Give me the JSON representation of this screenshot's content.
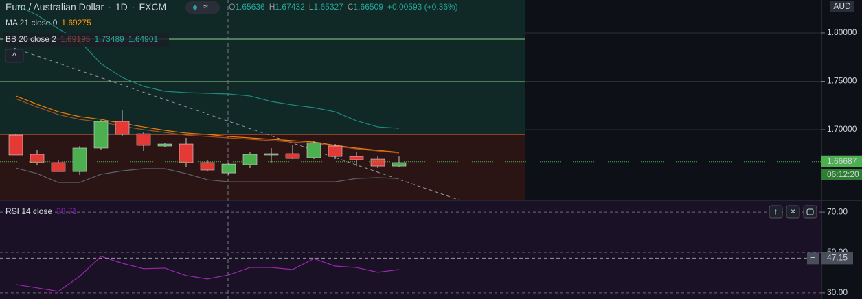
{
  "chart_data": [
    {
      "type": "candlestick",
      "title": "Euro / Australian Dollar",
      "interval": "1D",
      "exchange": "FXCM",
      "ohlc_legend": [
        {
          "key": "O",
          "value": "1.65636"
        },
        {
          "key": "H",
          "value": "1.67432"
        },
        {
          "key": "L",
          "value": "1.65327"
        },
        {
          "key": "C",
          "value": "1.66509"
        }
      ],
      "change": "+0.00593 (+0.36%)",
      "currency": "AUD",
      "open": [
        1.6943,
        1.6745,
        1.666,
        1.6567,
        1.6809,
        1.7085,
        1.6957,
        1.683,
        1.6851,
        1.666,
        1.6553,
        1.6638,
        1.6738,
        1.6752,
        1.6709,
        1.683,
        1.6723,
        1.6695,
        1.6624
      ],
      "high": [
        1.695,
        1.6794,
        1.6681,
        1.683,
        1.7099,
        1.7199,
        1.6979,
        1.6865,
        1.6915,
        1.6681,
        1.666,
        1.6766,
        1.6809,
        1.6837,
        1.6887,
        1.6851,
        1.6766,
        1.6723,
        1.6723
      ],
      "low": [
        1.6738,
        1.6631,
        1.6567,
        1.6532,
        1.6794,
        1.6936,
        1.678,
        1.6816,
        1.6617,
        1.6567,
        1.6532,
        1.6603,
        1.666,
        1.6695,
        1.6695,
        1.6695,
        1.6624,
        1.6603,
        1.6617
      ],
      "close": [
        1.6738,
        1.666,
        1.6567,
        1.6809,
        1.7085,
        1.695,
        1.6837,
        1.6851,
        1.666,
        1.6582,
        1.6645,
        1.6745,
        1.6752,
        1.6702,
        1.6865,
        1.6723,
        1.6688,
        1.6624,
        1.666
      ],
      "up_color": "#4caf50",
      "down_color": "#e53935",
      "indicators": [
        {
          "name": "MA 21 close 0",
          "value_labels": [
            "1.69275"
          ],
          "label_colors": [
            "#ff9800"
          ],
          "lines": [
            {
              "color": "#f57c00",
              "values": [
                1.7348,
                1.7262,
                1.7184,
                1.7135,
                1.7106,
                1.7064,
                1.7028,
                1.6993,
                1.6965,
                1.695,
                1.6929,
                1.6915,
                1.6901,
                1.6887,
                1.6872,
                1.6837,
                1.6809,
                1.6787,
                1.6766
              ]
            }
          ]
        },
        {
          "name": "BB 20 close 2",
          "value_labels": [
            "1.69195",
            "1.73489",
            "1.64901"
          ],
          "label_colors": [
            "#8c3a3a",
            "#26a69a",
            "#26a69a"
          ],
          "lines": [
            {
              "color": "#a0522d",
              "values": [
                1.7319,
                1.7234,
                1.7156,
                1.7106,
                1.7078,
                1.7035,
                1.7,
                1.6972,
                1.6943,
                1.6929,
                1.6915,
                1.6901,
                1.6887,
                1.6872,
                1.6858,
                1.683,
                1.6801,
                1.678,
                1.6759
              ]
            },
            {
              "color": "#1f8a80",
              "values": [
                1.829,
                1.8184,
                1.8042,
                1.7915,
                1.7681,
                1.7539,
                1.7447,
                1.7397,
                1.7383,
                1.7376,
                1.7369,
                1.7348,
                1.7291,
                1.7255,
                1.7227,
                1.7184,
                1.7092,
                1.7028,
                1.7014
              ]
            },
            {
              "color": "#5d6270",
              "values": [
                1.6603,
                1.6546,
                1.6454,
                1.6454,
                1.6539,
                1.6574,
                1.6596,
                1.6596,
                1.6546,
                1.6482,
                1.6461,
                1.6461,
                1.6461,
                1.6461,
                1.6461,
                1.6461,
                1.6496,
                1.6504,
                1.6496
              ]
            }
          ]
        }
      ],
      "last_price": 1.66687,
      "countdown": "06:12:20",
      "ylim": [
        1.627,
        1.834
      ],
      "yticks": [
        {
          "value": 1.8,
          "label": "1.80000"
        },
        {
          "value": 1.75,
          "label": "1.75000"
        },
        {
          "value": 1.7,
          "label": "1.70000"
        }
      ]
    },
    {
      "type": "line",
      "name": "RSI 14 close",
      "value_label": "38.71",
      "color": "#9c27b0",
      "values": [
        34.1,
        32.4,
        30.7,
        38.1,
        48.0,
        44.6,
        41.9,
        42.2,
        38.5,
        36.8,
        38.8,
        42.5,
        42.5,
        41.5,
        46.9,
        43.2,
        42.5,
        40.2,
        41.5
      ],
      "crosshair": 47.15,
      "ylim": [
        26.9,
        75.8
      ],
      "yticks": [
        {
          "value": 70,
          "label": "70.00"
        },
        {
          "value": 50,
          "label": "50.00"
        },
        {
          "value": 30,
          "label": "30.00"
        }
      ]
    }
  ]
}
